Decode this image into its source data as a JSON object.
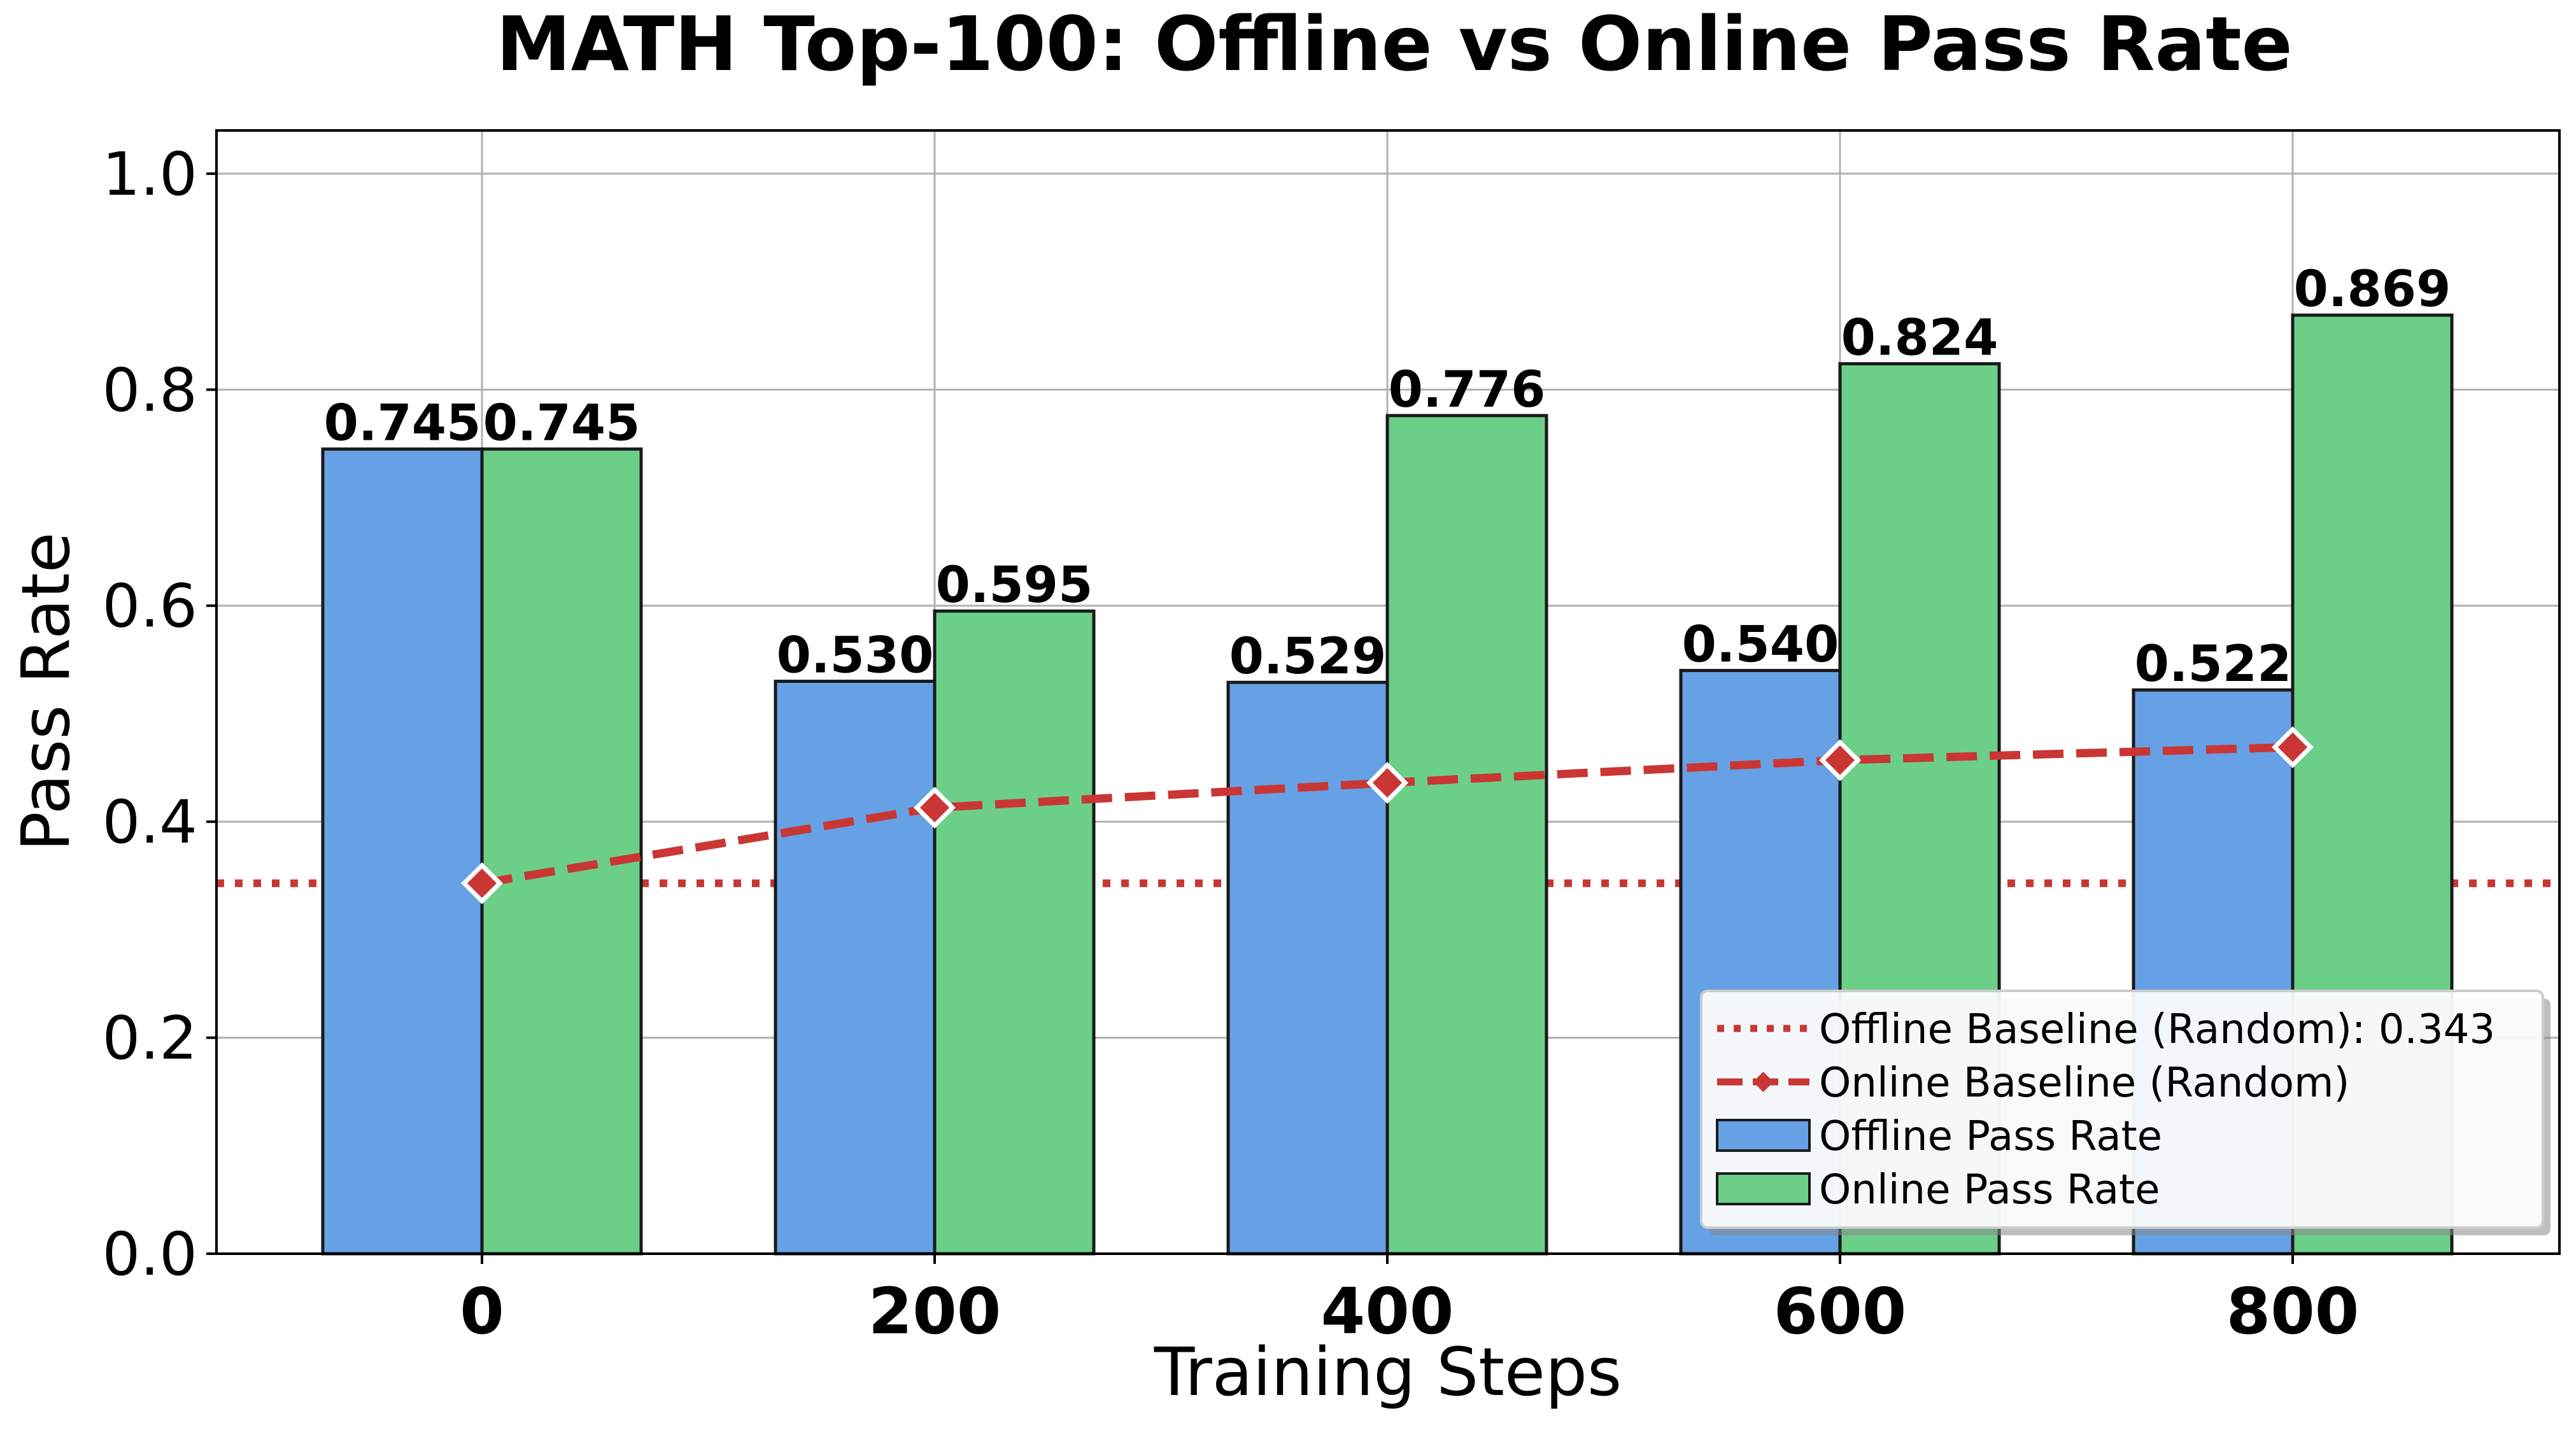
{
  "chart_data": {
    "type": "bar",
    "title": "MATH Top-100: Offline vs Online Pass Rate",
    "xlabel": "Training Steps",
    "ylabel": "Pass Rate",
    "categories": [
      "0",
      "200",
      "400",
      "600",
      "800"
    ],
    "ylim": [
      0,
      1.04
    ],
    "yticks": [
      "0.0",
      "0.2",
      "0.4",
      "0.6",
      "0.8",
      "1.0"
    ],
    "grid": true,
    "legend_position": "lower-right",
    "series": [
      {
        "name": "Offline Pass Rate",
        "kind": "bar",
        "color": "#66a1e5",
        "values": [
          0.745,
          0.53,
          0.529,
          0.54,
          0.522
        ],
        "labels": [
          "0.745",
          "0.530",
          "0.529",
          "0.540",
          "0.522"
        ]
      },
      {
        "name": "Online Pass Rate",
        "kind": "bar",
        "color": "#6ccf88",
        "values": [
          0.745,
          0.595,
          0.776,
          0.824,
          0.869
        ],
        "labels": [
          "0.745",
          "0.595",
          "0.776",
          "0.824",
          "0.869"
        ]
      },
      {
        "name": "Online Baseline (Random)",
        "kind": "line",
        "color": "#c93634",
        "values": [
          0.343,
          0.413,
          0.436,
          0.457,
          0.469
        ]
      }
    ],
    "reference_lines": [
      {
        "name": "Offline Baseline (Random): 0.343",
        "value": 0.343,
        "color": "#c93634",
        "style": "dotted"
      }
    ]
  }
}
